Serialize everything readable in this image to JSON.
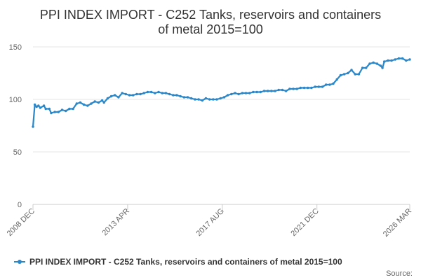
{
  "chart_data": {
    "type": "line",
    "title_lines": [
      "PPI INDEX IMPORT - C252 Tanks, reservoirs and containers",
      "of metal 2015=100"
    ],
    "xlabel": "",
    "ylabel": "",
    "ylim": [
      0,
      150
    ],
    "yticks": [
      0,
      50,
      100,
      150
    ],
    "x_range": [
      "2008-12",
      "2026-03"
    ],
    "xticks": [
      {
        "label": "2008 DEC",
        "date": "2008-12"
      },
      {
        "label": "2013 APR",
        "date": "2013-04"
      },
      {
        "label": "2017 AUG",
        "date": "2017-08"
      },
      {
        "label": "2021 DEC",
        "date": "2021-12"
      },
      {
        "label": "2026 MAR",
        "date": "2026-03"
      }
    ],
    "grid": true,
    "legend_position": "bottom",
    "source_label": "Source:",
    "colors": {
      "series": "#2b87c8",
      "grid": "#e6e6e6",
      "axis": "#cccccc"
    },
    "series": [
      {
        "name": "PPI INDEX IMPORT - C252 Tanks, reservoirs and containers of metal 2015=100",
        "points": [
          [
            "2008-12",
            74
          ],
          [
            "2009-01",
            95
          ],
          [
            "2009-02",
            93
          ],
          [
            "2009-03",
            94
          ],
          [
            "2009-04",
            92
          ],
          [
            "2009-06",
            94
          ],
          [
            "2009-07",
            91
          ],
          [
            "2009-09",
            91
          ],
          [
            "2009-10",
            87
          ],
          [
            "2009-12",
            88
          ],
          [
            "2010-02",
            88
          ],
          [
            "2010-04",
            90
          ],
          [
            "2010-06",
            89
          ],
          [
            "2010-08",
            91
          ],
          [
            "2010-10",
            91
          ],
          [
            "2010-12",
            96
          ],
          [
            "2011-02",
            97
          ],
          [
            "2011-04",
            95
          ],
          [
            "2011-06",
            94
          ],
          [
            "2011-08",
            96
          ],
          [
            "2011-10",
            98
          ],
          [
            "2011-12",
            97
          ],
          [
            "2012-02",
            99
          ],
          [
            "2012-03",
            97
          ],
          [
            "2012-05",
            101
          ],
          [
            "2012-07",
            103
          ],
          [
            "2012-09",
            104
          ],
          [
            "2012-11",
            102
          ],
          [
            "2013-01",
            106
          ],
          [
            "2013-03",
            105
          ],
          [
            "2013-05",
            104
          ],
          [
            "2013-07",
            104
          ],
          [
            "2013-09",
            105
          ],
          [
            "2013-11",
            105
          ],
          [
            "2014-01",
            106
          ],
          [
            "2014-03",
            107
          ],
          [
            "2014-05",
            107
          ],
          [
            "2014-07",
            106
          ],
          [
            "2014-09",
            107
          ],
          [
            "2014-11",
            106
          ],
          [
            "2015-01",
            106
          ],
          [
            "2015-03",
            105
          ],
          [
            "2015-05",
            104
          ],
          [
            "2015-07",
            104
          ],
          [
            "2015-09",
            103
          ],
          [
            "2015-11",
            102
          ],
          [
            "2016-01",
            102
          ],
          [
            "2016-03",
            101
          ],
          [
            "2016-05",
            100
          ],
          [
            "2016-07",
            100
          ],
          [
            "2016-09",
            99
          ],
          [
            "2016-11",
            101
          ],
          [
            "2017-01",
            100
          ],
          [
            "2017-03",
            100
          ],
          [
            "2017-05",
            100
          ],
          [
            "2017-07",
            101
          ],
          [
            "2017-09",
            102
          ],
          [
            "2017-11",
            104
          ],
          [
            "2018-01",
            105
          ],
          [
            "2018-03",
            106
          ],
          [
            "2018-05",
            105
          ],
          [
            "2018-07",
            106
          ],
          [
            "2018-09",
            106
          ],
          [
            "2018-11",
            106
          ],
          [
            "2019-01",
            107
          ],
          [
            "2019-03",
            107
          ],
          [
            "2019-05",
            107
          ],
          [
            "2019-07",
            108
          ],
          [
            "2019-09",
            108
          ],
          [
            "2019-11",
            108
          ],
          [
            "2020-01",
            108
          ],
          [
            "2020-03",
            109
          ],
          [
            "2020-05",
            109
          ],
          [
            "2020-07",
            108
          ],
          [
            "2020-09",
            110
          ],
          [
            "2020-11",
            110
          ],
          [
            "2021-01",
            110
          ],
          [
            "2021-03",
            111
          ],
          [
            "2021-05",
            111
          ],
          [
            "2021-07",
            111
          ],
          [
            "2021-09",
            111
          ],
          [
            "2021-11",
            112
          ],
          [
            "2022-01",
            112
          ],
          [
            "2022-03",
            112
          ],
          [
            "2022-05",
            114
          ],
          [
            "2022-07",
            114
          ],
          [
            "2022-09",
            115
          ],
          [
            "2022-11",
            119
          ],
          [
            "2023-01",
            123
          ],
          [
            "2023-03",
            124
          ],
          [
            "2023-05",
            125
          ],
          [
            "2023-07",
            128
          ],
          [
            "2023-09",
            124
          ],
          [
            "2023-11",
            124
          ],
          [
            "2024-01",
            130
          ],
          [
            "2024-03",
            130
          ],
          [
            "2024-05",
            134
          ],
          [
            "2024-07",
            135
          ],
          [
            "2024-09",
            134
          ],
          [
            "2024-11",
            132
          ],
          [
            "2024-12",
            130
          ],
          [
            "2025-01",
            136
          ],
          [
            "2025-03",
            137
          ],
          [
            "2025-05",
            137
          ],
          [
            "2025-07",
            138
          ],
          [
            "2025-09",
            139
          ],
          [
            "2025-11",
            139
          ],
          [
            "2026-01",
            137
          ],
          [
            "2026-03",
            138
          ]
        ]
      }
    ]
  }
}
